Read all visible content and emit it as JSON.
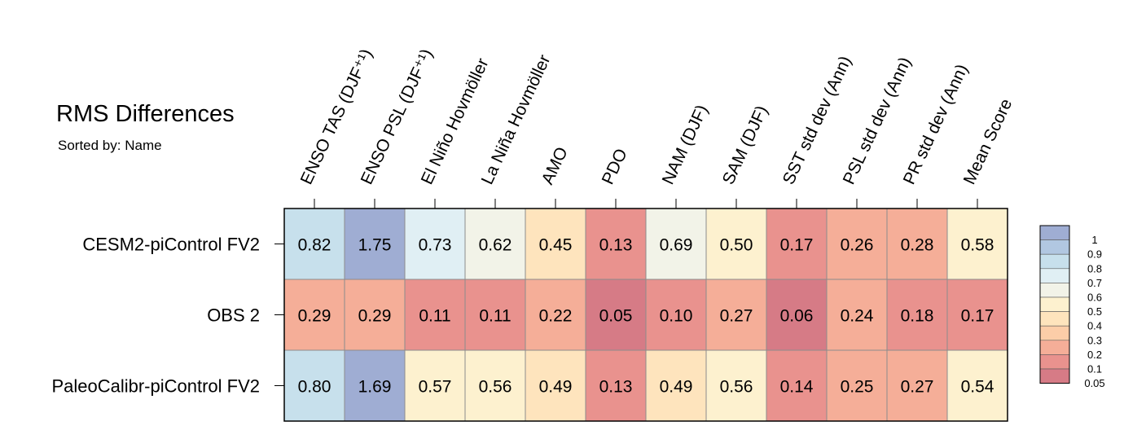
{
  "chart_data": {
    "type": "heatmap",
    "title": "RMS Differences",
    "subtitle": "Sorted by: Name",
    "columns": [
      "ENSO TAS (DJF⁺¹)",
      "ENSO PSL (DJF⁺¹)",
      "El Niño Hovmöller",
      "La Niña Hovmöller",
      "AMO",
      "PDO",
      "NAM (DJF)",
      "SAM (DJF)",
      "SST std dev (Ann)",
      "PSL std dev (Ann)",
      "PR std dev (Ann)",
      "Mean Score"
    ],
    "rows": [
      {
        "name": "CESM2-piControl FV2",
        "values": [
          0.82,
          1.75,
          0.73,
          0.62,
          0.45,
          0.13,
          0.69,
          0.5,
          0.17,
          0.26,
          0.28,
          0.58
        ]
      },
      {
        "name": "OBS 2",
        "values": [
          0.29,
          0.29,
          0.11,
          0.11,
          0.22,
          0.05,
          0.1,
          0.27,
          0.06,
          0.24,
          0.18,
          0.17
        ]
      },
      {
        "name": "PaleoCalibr-piControl FV2",
        "values": [
          0.8,
          1.69,
          0.57,
          0.56,
          0.49,
          0.13,
          0.49,
          0.56,
          0.14,
          0.25,
          0.27,
          0.54
        ]
      }
    ],
    "legend": {
      "placement": "right",
      "tick_labels": [
        "1",
        "0.9",
        "0.8",
        "0.7",
        "0.6",
        "0.5",
        "0.4",
        "0.3",
        "0.2",
        "0.1",
        "0.05"
      ],
      "thresholds": [
        1,
        0.9,
        0.8,
        0.7,
        0.6,
        0.5,
        0.4,
        0.3,
        0.2,
        0.1,
        0.05
      ],
      "colors": [
        "#9fadd3",
        "#b1c7e1",
        "#c7e0ec",
        "#e0eff4",
        "#f2f3e8",
        "#fdf1cf",
        "#fee4bd",
        "#fccda8",
        "#f5ae98",
        "#e9928e",
        "#d67b86"
      ]
    }
  }
}
